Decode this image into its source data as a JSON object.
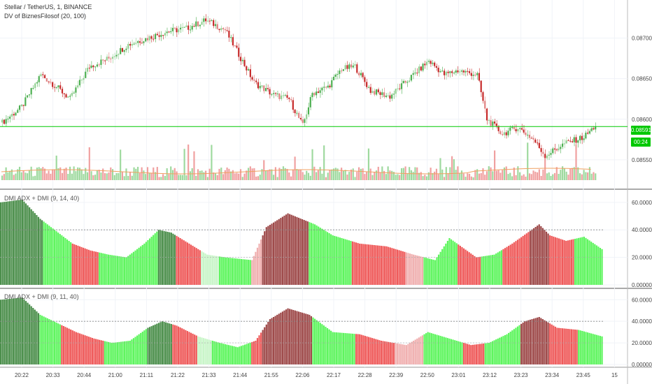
{
  "header": {
    "symbol_line": "Stellar / TetherUS, 1, BINANCE",
    "indicator_line": "DV of BiznesFilosof (20, 100)"
  },
  "last_price": {
    "value": "0.08591",
    "countdown": "00:24",
    "level": 0.08591
  },
  "colors": {
    "up": "#4caf50",
    "down": "#c62828",
    "up_light": "#90d090",
    "down_light": "#e08080",
    "bar_green": "#5ef55e",
    "bar_dark_green": "#4c8f4c",
    "bar_red": "#ef5a5a",
    "bar_dark_red": "#9e4a4a",
    "bar_pale_green": "#c8f5c8",
    "bar_pale_red": "#f0b0b0",
    "last_price_line": "#00c800"
  },
  "chart_data": [
    {
      "type": "candlestick",
      "title": "Stellar / TetherUS, 1, BINANCE",
      "indicator": "DV of BiznesFilosof (20, 100)",
      "ylim": [
        0.08525,
        0.0874
      ],
      "y_ticks": [
        "0.08700",
        "0.08650",
        "0.08600",
        "0.08550"
      ],
      "y_tick_values": [
        0.087,
        0.0865,
        0.086,
        0.0855
      ],
      "close_anchors": [
        [
          0,
          0.08596
        ],
        [
          10,
          0.08615
        ],
        [
          20,
          0.08655
        ],
        [
          28,
          0.0864
        ],
        [
          35,
          0.08625
        ],
        [
          45,
          0.08665
        ],
        [
          55,
          0.08675
        ],
        [
          65,
          0.08692
        ],
        [
          75,
          0.087
        ],
        [
          85,
          0.08708
        ],
        [
          95,
          0.08712
        ],
        [
          105,
          0.08722
        ],
        [
          115,
          0.0871
        ],
        [
          122,
          0.0868
        ],
        [
          130,
          0.08645
        ],
        [
          140,
          0.0863
        ],
        [
          148,
          0.08625
        ],
        [
          155,
          0.08592
        ],
        [
          160,
          0.08632
        ],
        [
          168,
          0.0864
        ],
        [
          175,
          0.08662
        ],
        [
          182,
          0.08665
        ],
        [
          190,
          0.08635
        ],
        [
          200,
          0.08628
        ],
        [
          210,
          0.0865
        ],
        [
          220,
          0.08672
        ],
        [
          228,
          0.08655
        ],
        [
          235,
          0.0866
        ],
        [
          245,
          0.08655
        ],
        [
          250,
          0.086
        ],
        [
          258,
          0.08582
        ],
        [
          266,
          0.0859
        ],
        [
          274,
          0.08575
        ],
        [
          280,
          0.08555
        ],
        [
          290,
          0.0857
        ],
        [
          300,
          0.08578
        ],
        [
          306,
          0.08592
        ]
      ],
      "volume_max_label": "",
      "last_price": 0.08591
    },
    {
      "type": "bar",
      "title": "DMI ADX + DMI (9, 14, 40)",
      "ylim": [
        0,
        66
      ],
      "y_ticks": [
        "60.00000",
        "40.00000",
        "20.00000",
        "0.00000"
      ],
      "y_tick_values": [
        60,
        40,
        20,
        0
      ],
      "threshold": 40,
      "anchors": [
        [
          0,
          60
        ],
        [
          12,
          62
        ],
        [
          22,
          48
        ],
        [
          30,
          40
        ],
        [
          40,
          30
        ],
        [
          50,
          25
        ],
        [
          60,
          22
        ],
        [
          70,
          20
        ],
        [
          80,
          30
        ],
        [
          88,
          40
        ],
        [
          95,
          38
        ],
        [
          105,
          30
        ],
        [
          115,
          22
        ],
        [
          125,
          20
        ],
        [
          140,
          18
        ],
        [
          148,
          42
        ],
        [
          160,
          52
        ],
        [
          175,
          44
        ],
        [
          185,
          36
        ],
        [
          200,
          30
        ],
        [
          215,
          28
        ],
        [
          230,
          22
        ],
        [
          242,
          18
        ],
        [
          250,
          34
        ],
        [
          265,
          20
        ],
        [
          275,
          22
        ],
        [
          285,
          30
        ],
        [
          300,
          44
        ],
        [
          306,
          36
        ],
        [
          315,
          32
        ],
        [
          325,
          35
        ],
        [
          335,
          26
        ]
      ],
      "color_segments": [
        [
          0,
          24,
          "dark_green"
        ],
        [
          24,
          40,
          "bar_green"
        ],
        [
          40,
          55,
          "bar_red"
        ],
        [
          55,
          66,
          "bar_green"
        ],
        [
          66,
          88,
          "bar_green"
        ],
        [
          88,
          98,
          "dark_green"
        ],
        [
          98,
          112,
          "bar_red"
        ],
        [
          112,
          122,
          "pale_green"
        ],
        [
          122,
          140,
          "bar_green"
        ],
        [
          140,
          146,
          "pale_red"
        ],
        [
          146,
          172,
          "dark_red"
        ],
        [
          172,
          196,
          "bar_green"
        ],
        [
          196,
          226,
          "bar_red"
        ],
        [
          226,
          236,
          "pale_red"
        ],
        [
          236,
          255,
          "bar_green"
        ],
        [
          255,
          268,
          "bar_red"
        ],
        [
          268,
          280,
          "bar_green"
        ],
        [
          280,
          295,
          "bar_red"
        ],
        [
          295,
          306,
          "dark_red"
        ],
        [
          306,
          320,
          "bar_red"
        ],
        [
          320,
          336,
          "bar_green"
        ]
      ]
    },
    {
      "type": "bar",
      "title": "DMI ADX + DMI (9, 11, 40)",
      "ylim": [
        0,
        66
      ],
      "y_ticks": [
        "60.00000",
        "40.00000",
        "20.00000",
        "0.00000"
      ],
      "y_tick_values": [
        60,
        40,
        20,
        0
      ],
      "threshold": 40,
      "anchors": [
        [
          0,
          60
        ],
        [
          12,
          62
        ],
        [
          22,
          46
        ],
        [
          32,
          38
        ],
        [
          42,
          30
        ],
        [
          52,
          24
        ],
        [
          62,
          20
        ],
        [
          72,
          22
        ],
        [
          82,
          34
        ],
        [
          90,
          40
        ],
        [
          98,
          36
        ],
        [
          110,
          26
        ],
        [
          122,
          20
        ],
        [
          132,
          16
        ],
        [
          142,
          22
        ],
        [
          150,
          42
        ],
        [
          160,
          52
        ],
        [
          172,
          46
        ],
        [
          185,
          30
        ],
        [
          200,
          28
        ],
        [
          212,
          22
        ],
        [
          226,
          18
        ],
        [
          238,
          30
        ],
        [
          250,
          24
        ],
        [
          262,
          18
        ],
        [
          272,
          20
        ],
        [
          282,
          28
        ],
        [
          292,
          40
        ],
        [
          300,
          44
        ],
        [
          310,
          34
        ],
        [
          322,
          32
        ],
        [
          335,
          26
        ]
      ],
      "color_segments": [
        [
          0,
          22,
          "dark_green"
        ],
        [
          22,
          34,
          "bar_green"
        ],
        [
          34,
          58,
          "bar_red"
        ],
        [
          58,
          82,
          "bar_green"
        ],
        [
          82,
          96,
          "dark_green"
        ],
        [
          96,
          110,
          "bar_red"
        ],
        [
          110,
          118,
          "pale_green"
        ],
        [
          118,
          140,
          "bar_green"
        ],
        [
          140,
          146,
          "bar_red"
        ],
        [
          146,
          174,
          "dark_red"
        ],
        [
          174,
          198,
          "bar_green"
        ],
        [
          198,
          220,
          "bar_red"
        ],
        [
          220,
          236,
          "pale_red"
        ],
        [
          236,
          258,
          "bar_green"
        ],
        [
          258,
          270,
          "bar_red"
        ],
        [
          270,
          290,
          "bar_green"
        ],
        [
          290,
          306,
          "dark_red"
        ],
        [
          306,
          322,
          "bar_red"
        ],
        [
          322,
          336,
          "bar_green"
        ]
      ]
    }
  ],
  "x_axis": {
    "labels": [
      "20:22",
      "20:33",
      "20:44",
      "21:00",
      "21:11",
      "21:22",
      "21:33",
      "21:44",
      "21:55",
      "22:06",
      "22:17",
      "22:28",
      "22:39",
      "22:50",
      "23:01",
      "23:12",
      "23:23",
      "23:34",
      "23:45",
      "15"
    ]
  }
}
